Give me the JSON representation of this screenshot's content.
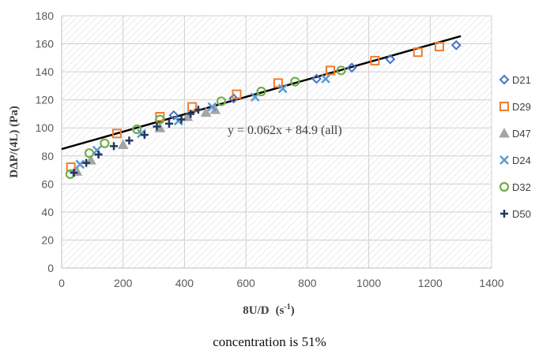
{
  "caption": "concentration is 51%",
  "chart_data": {
    "type": "scatter",
    "xlabel": "8U/D",
    "xlabel_unit_base": "(s",
    "xlabel_unit_sup": "-1",
    "xlabel_unit_close": ")",
    "ylabel": "DΔP/(4L)  (Pa)",
    "xlim": [
      0,
      1400
    ],
    "ylim": [
      0,
      180
    ],
    "x_ticks": [
      0,
      200,
      400,
      600,
      800,
      1000,
      1200,
      1400
    ],
    "y_ticks": [
      0,
      20,
      40,
      60,
      80,
      100,
      120,
      140,
      160,
      180
    ],
    "grid": "hatched",
    "legend_position": "right",
    "trendline": {
      "label": "y = 0.062x + 84.9 (all)",
      "slope": 0.062,
      "intercept": 84.9,
      "x_range": [
        0,
        1300
      ],
      "color": "#000000"
    },
    "series": [
      {
        "name": "D21",
        "marker": "diamond",
        "color": "#4472C4",
        "points": [
          [
            365,
            109
          ],
          [
            560,
            121
          ],
          [
            830,
            135
          ],
          [
            945,
            143
          ],
          [
            1070,
            149
          ],
          [
            1285,
            159
          ]
        ]
      },
      {
        "name": "D29",
        "marker": "square",
        "color": "#ED7D31",
        "points": [
          [
            30,
            72
          ],
          [
            180,
            96
          ],
          [
            320,
            108
          ],
          [
            425,
            115
          ],
          [
            570,
            124
          ],
          [
            705,
            132
          ],
          [
            875,
            141
          ],
          [
            1020,
            148
          ],
          [
            1160,
            154
          ],
          [
            1230,
            158
          ]
        ]
      },
      {
        "name": "D47",
        "marker": "triangle",
        "color": "#A5A5A5",
        "points": [
          [
            50,
            69
          ],
          [
            95,
            77
          ],
          [
            200,
            88
          ],
          [
            320,
            100
          ],
          [
            410,
            108
          ],
          [
            470,
            111
          ],
          [
            500,
            113
          ]
        ]
      },
      {
        "name": "D24",
        "marker": "x",
        "color": "#5B9BD5",
        "points": [
          [
            60,
            74
          ],
          [
            115,
            84
          ],
          [
            260,
            96
          ],
          [
            380,
            105
          ],
          [
            490,
            115
          ],
          [
            630,
            122
          ],
          [
            720,
            128
          ],
          [
            860,
            135
          ]
        ]
      },
      {
        "name": "D32",
        "marker": "circle",
        "color": "#70AD47",
        "points": [
          [
            28,
            67
          ],
          [
            90,
            82
          ],
          [
            140,
            89
          ],
          [
            245,
            99
          ],
          [
            320,
            106
          ],
          [
            520,
            119
          ],
          [
            650,
            126
          ],
          [
            760,
            133
          ],
          [
            910,
            141
          ]
        ]
      },
      {
        "name": "D50",
        "marker": "plus",
        "color": "#1F3864",
        "points": [
          [
            40,
            68
          ],
          [
            80,
            75
          ],
          [
            120,
            81
          ],
          [
            170,
            87
          ],
          [
            220,
            91
          ],
          [
            270,
            95
          ],
          [
            310,
            101
          ],
          [
            350,
            103
          ],
          [
            390,
            106
          ],
          [
            420,
            110
          ],
          [
            445,
            113
          ]
        ]
      }
    ]
  }
}
